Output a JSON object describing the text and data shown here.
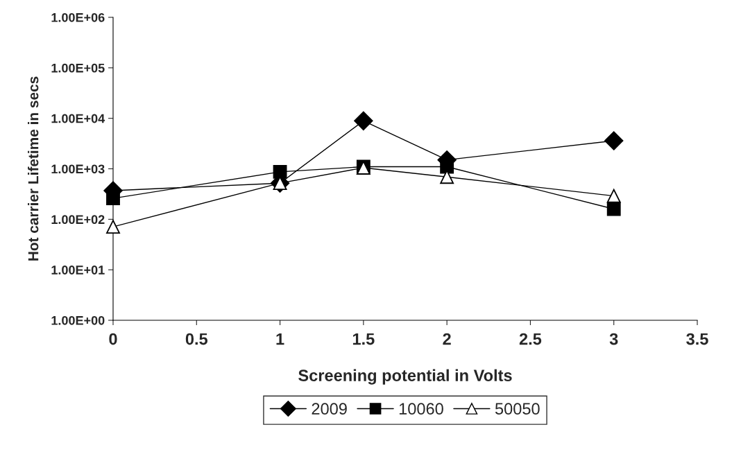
{
  "chart_data": {
    "type": "line",
    "xlabel": "Screening potential in Volts",
    "ylabel": "Hot carrier Lifetime in secs",
    "log": "y",
    "grid": false,
    "legend": "bottom",
    "line_style": "solid",
    "xlim": [
      0,
      3.5
    ],
    "xticks": [
      0,
      0.5,
      1,
      1.5,
      2,
      2.5,
      3,
      3.5
    ],
    "ylim": [
      1,
      1000000
    ],
    "yticks": [
      {
        "value": 1,
        "label": "1.00E+00"
      },
      {
        "value": 10,
        "label": "1.00E+01"
      },
      {
        "value": 100,
        "label": "1.00E+02"
      },
      {
        "value": 1000,
        "label": "1.00E+03"
      },
      {
        "value": 10000,
        "label": "1.00E+04"
      },
      {
        "value": 100000,
        "label": "1.00E+05"
      },
      {
        "value": 1000000,
        "label": "1.00E+06"
      }
    ],
    "x": [
      0,
      1,
      1.5,
      2,
      3
    ],
    "series": [
      {
        "name": "2009",
        "color": "#000000",
        "marker": "diamond",
        "values": [
          370,
          520,
          8900,
          1500,
          3600
        ]
      },
      {
        "name": "10060",
        "color": "#000000",
        "marker": "square",
        "values": [
          260,
          870,
          1100,
          1100,
          160
        ]
      },
      {
        "name": "50050",
        "color": "#000000",
        "marker": "triangle",
        "colors": [
          "#ffffff",
          "#ffffff",
          "#ffffff",
          "#ffffff",
          "#ffffff"
        ],
        "values": [
          71,
          520,
          1050,
          690,
          290
        ]
      }
    ]
  }
}
